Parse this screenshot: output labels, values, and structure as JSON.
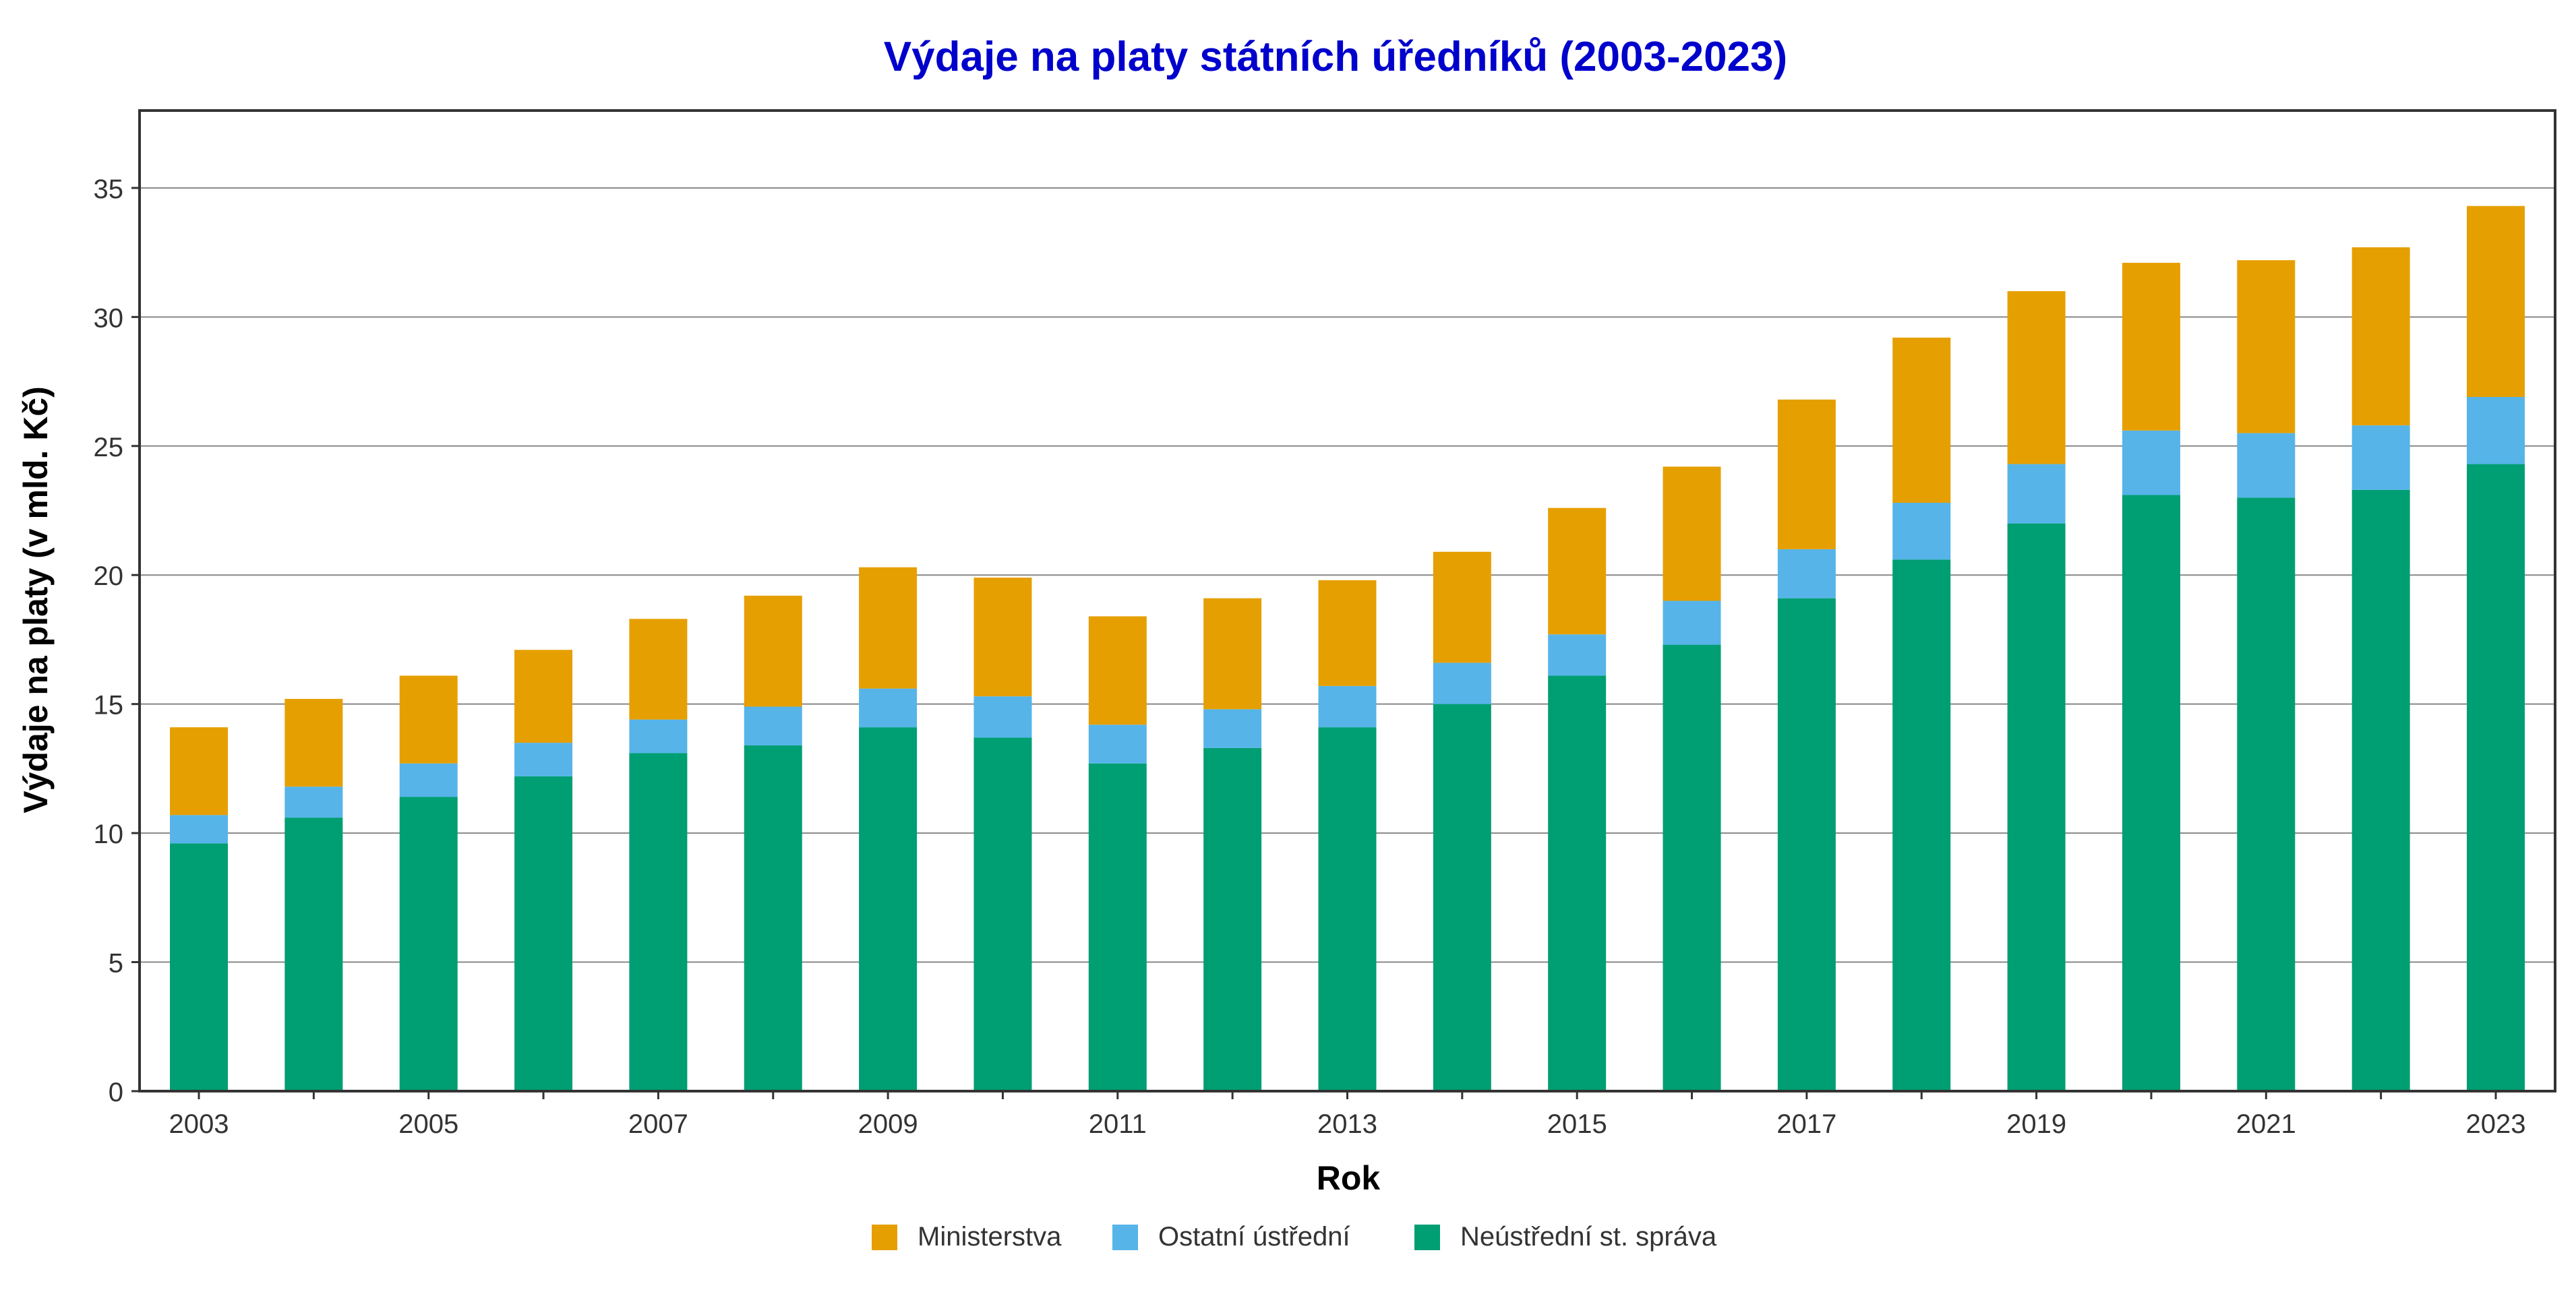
{
  "chart_data": {
    "type": "bar",
    "stacked": true,
    "title": "Výdaje na platy státních úředníků (2003-2023)",
    "xlabel": "Rok",
    "ylabel": "Výdaje na platy (v mld. Kč)",
    "ylim": [
      0,
      38
    ],
    "yticks": [
      0,
      5,
      10,
      15,
      20,
      25,
      30,
      35
    ],
    "grid": true,
    "legend_position": "bottom",
    "categories": [
      "2003",
      "2004",
      "2005",
      "2006",
      "2007",
      "2008",
      "2009",
      "2010",
      "2011",
      "2012",
      "2013",
      "2014",
      "2015",
      "2016",
      "2017",
      "2018",
      "2019",
      "2020",
      "2021",
      "2022",
      "2023"
    ],
    "xtick_labels": [
      "2003",
      "2005",
      "2007",
      "2009",
      "2011",
      "2013",
      "2015",
      "2017",
      "2019",
      "2021",
      "2023"
    ],
    "series": [
      {
        "name": "Neústřední st. správa",
        "color": "#009E73",
        "values": [
          9.6,
          10.6,
          11.4,
          12.2,
          13.1,
          13.4,
          14.1,
          13.7,
          12.7,
          13.3,
          14.1,
          15.0,
          16.1,
          17.3,
          19.1,
          20.6,
          22.0,
          23.1,
          23.0,
          23.3,
          24.3
        ]
      },
      {
        "name": "Ostatní ústřední",
        "color": "#56B4E9",
        "values": [
          1.1,
          1.2,
          1.3,
          1.3,
          1.3,
          1.5,
          1.5,
          1.6,
          1.5,
          1.5,
          1.6,
          1.6,
          1.6,
          1.7,
          1.9,
          2.2,
          2.3,
          2.5,
          2.5,
          2.5,
          2.6
        ]
      },
      {
        "name": "Ministerstva",
        "color": "#E69F00",
        "values": [
          3.4,
          3.4,
          3.4,
          3.6,
          3.9,
          4.3,
          4.7,
          4.6,
          4.2,
          4.3,
          4.1,
          4.3,
          4.9,
          5.2,
          5.8,
          6.4,
          6.7,
          6.5,
          6.7,
          6.9,
          7.4
        ]
      }
    ],
    "legend_order": [
      "Ministerstva",
      "Ostatní ústřední",
      "Neústřední st. správa"
    ]
  },
  "colors": {
    "title": "#0000CC",
    "grid": "#888888",
    "axis": "#333333",
    "background": "#ffffff"
  }
}
